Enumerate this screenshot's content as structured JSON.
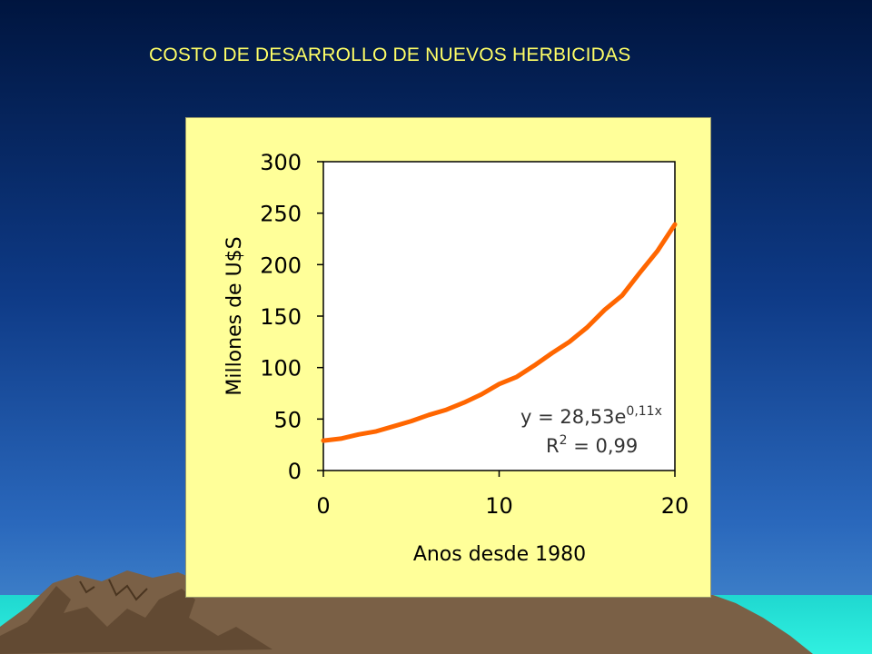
{
  "slide": {
    "title": "COSTO DE DESARROLLO DE NUEVOS HERBICIDAS",
    "colors": {
      "sky_top": "#00184A",
      "sky_bottom": "#2E6FC4",
      "panel": "#FFFF99",
      "line": "#FF6600",
      "title": "#FFFF66",
      "water": "#22E8D8",
      "mountain": "#7A6046"
    }
  },
  "chart_data": {
    "type": "line",
    "xlabel": "Anos desde 1980",
    "ylabel": "Millones de U$S",
    "xlim": [
      0,
      20
    ],
    "ylim": [
      0,
      300
    ],
    "x_ticks": [
      "0",
      "10",
      "20"
    ],
    "y_ticks": [
      "0",
      "50",
      "100",
      "150",
      "200",
      "250",
      "300"
    ],
    "grid": false,
    "legend": "none",
    "series": [
      {
        "x": [
          0,
          1,
          2,
          3,
          4,
          5,
          6,
          7,
          8,
          9,
          10,
          11,
          12,
          13,
          14,
          15,
          16,
          17,
          18,
          19,
          20
        ],
        "y": [
          29,
          31,
          35,
          38,
          43,
          48,
          54,
          59,
          66,
          74,
          84,
          91,
          102,
          114,
          125,
          139,
          156,
          170,
          192,
          213,
          239
        ],
        "color": "#FF6600"
      }
    ],
    "annotations": {
      "eq_prefix": "y = 28,53e",
      "eq_exp": "0,11x",
      "r2_prefix": "R",
      "r2_sup": "2",
      "r2_suffix": " = 0,99"
    }
  }
}
